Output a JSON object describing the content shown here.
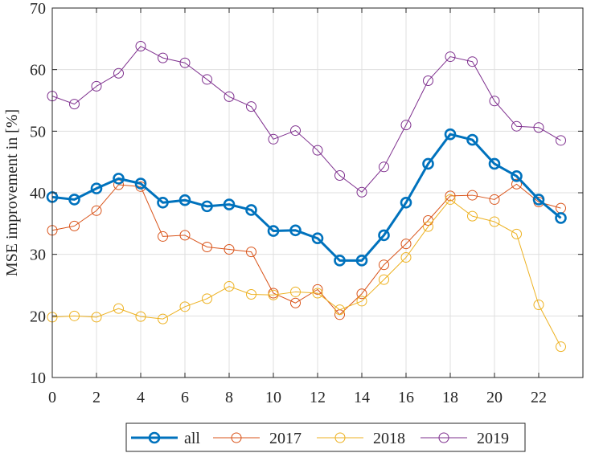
{
  "chart_data": {
    "type": "line",
    "title": "",
    "xlabel": "",
    "ylabel": "MSE improvement in [%]",
    "xlim": [
      0,
      24
    ],
    "ylim": [
      10,
      70
    ],
    "xticks": [
      0,
      2,
      4,
      6,
      8,
      10,
      12,
      14,
      16,
      18,
      20,
      22
    ],
    "yticks": [
      10,
      20,
      30,
      40,
      50,
      60,
      70
    ],
    "grid": true,
    "legend_position": "bottom-outside",
    "x": [
      0,
      1,
      2,
      3,
      4,
      5,
      6,
      7,
      8,
      9,
      10,
      11,
      12,
      13,
      14,
      15,
      16,
      17,
      18,
      19,
      20,
      21,
      22,
      23
    ],
    "series": [
      {
        "name": "all",
        "color": "#0072BD",
        "values": [
          39.3,
          38.9,
          40.7,
          42.3,
          41.5,
          38.4,
          38.8,
          37.8,
          38.1,
          37.2,
          33.8,
          33.9,
          32.6,
          29.0,
          29.0,
          33.1,
          38.4,
          44.7,
          49.5,
          48.6,
          44.7,
          42.7,
          38.9,
          35.9
        ]
      },
      {
        "name": "2017",
        "color": "#D95319",
        "values": [
          33.9,
          34.6,
          37.1,
          41.3,
          41.0,
          32.9,
          33.1,
          31.2,
          30.8,
          30.4,
          23.7,
          22.1,
          24.3,
          20.2,
          23.6,
          28.3,
          31.7,
          35.5,
          39.5,
          39.6,
          38.9,
          41.4,
          38.5,
          37.5
        ]
      },
      {
        "name": "2018",
        "color": "#EDB120",
        "values": [
          19.8,
          20.0,
          19.8,
          21.2,
          19.9,
          19.5,
          21.5,
          22.8,
          24.8,
          23.5,
          23.4,
          23.9,
          23.7,
          21.0,
          22.4,
          25.9,
          29.5,
          34.5,
          38.9,
          36.2,
          35.3,
          33.3,
          21.8,
          15.0
        ]
      },
      {
        "name": "2019",
        "color": "#7E2F8E",
        "values": [
          55.7,
          54.4,
          57.3,
          59.4,
          63.8,
          61.9,
          61.1,
          58.4,
          55.6,
          54.0,
          48.7,
          50.1,
          46.9,
          42.8,
          40.1,
          44.2,
          51.0,
          58.2,
          62.1,
          61.3,
          54.9,
          50.8,
          50.6,
          48.5
        ]
      }
    ]
  }
}
